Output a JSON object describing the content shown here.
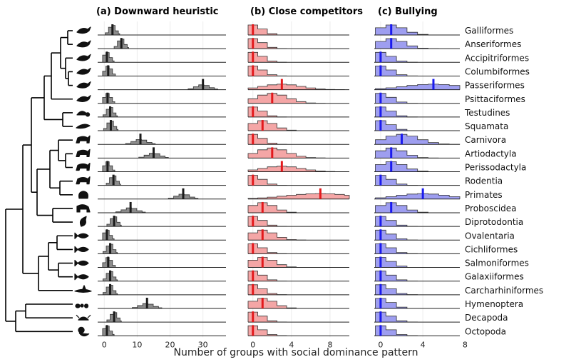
{
  "chart_data": {
    "type": "ridgeline",
    "xlabel": "Number of groups with social dominance pattern",
    "taxa": [
      "Galliformes",
      "Anseriformes",
      "Accipitriformes",
      "Columbiformes",
      "Passeriformes",
      "Psittaciformes",
      "Testudines",
      "Squamata",
      "Carnivora",
      "Artiodactyla",
      "Perissodactyla",
      "Rodentia",
      "Primates",
      "Proboscidea",
      "Diprotodontia",
      "Ovalentaria",
      "Cichliformes",
      "Salmoniformes",
      "Galaxiiformes",
      "Carcharhiniformes",
      "Hymenoptera",
      "Decapoda",
      "Octopoda"
    ],
    "panels": [
      {
        "title": "(a) Downward heuristic",
        "xlim": [
          -2,
          37
        ],
        "xticks": [
          0,
          10,
          20,
          30
        ],
        "fill": "#8c8c8c",
        "mark": "#1a1a1a",
        "means": [
          2.5,
          5.2,
          0.8,
          1.2,
          30,
          1.0,
          1.8,
          2.0,
          11,
          15,
          1.0,
          2.8,
          24,
          8,
          3.0,
          0.8,
          1.8,
          1.2,
          1.8,
          1.8,
          13,
          3.0,
          0.8
        ]
      },
      {
        "title": "(b) Close competitors",
        "xlim": [
          -0.5,
          10
        ],
        "xticks": [
          0,
          4,
          8
        ],
        "fill": "#f4a6a6",
        "mark": "#e3191c",
        "means": [
          0,
          0,
          0,
          0,
          3,
          2,
          0,
          1,
          0,
          2,
          3,
          0,
          7,
          1,
          0,
          1,
          0,
          1,
          0,
          0,
          1,
          0,
          0
        ]
      },
      {
        "title": "(c) Bullying",
        "xlim": [
          -0.6,
          7.5
        ],
        "xticks": [
          0,
          4,
          8
        ],
        "fill": "#9e9ef0",
        "mark": "#1a1aee",
        "means": [
          1,
          1,
          0,
          0,
          5,
          0,
          0,
          0,
          2,
          1,
          1,
          0,
          4,
          1,
          0,
          0,
          0,
          0,
          0,
          0,
          0,
          0,
          0
        ]
      }
    ],
    "silhouettes": [
      "bird",
      "bird",
      "bird",
      "bird",
      "bird",
      "bird",
      "turtle",
      "lizard",
      "mammal",
      "mammal",
      "mammal",
      "mammal",
      "monkey",
      "elephant",
      "kangaroo",
      "fish",
      "fish",
      "fish",
      "fish",
      "shark",
      "ant",
      "crab",
      "octopus"
    ]
  }
}
